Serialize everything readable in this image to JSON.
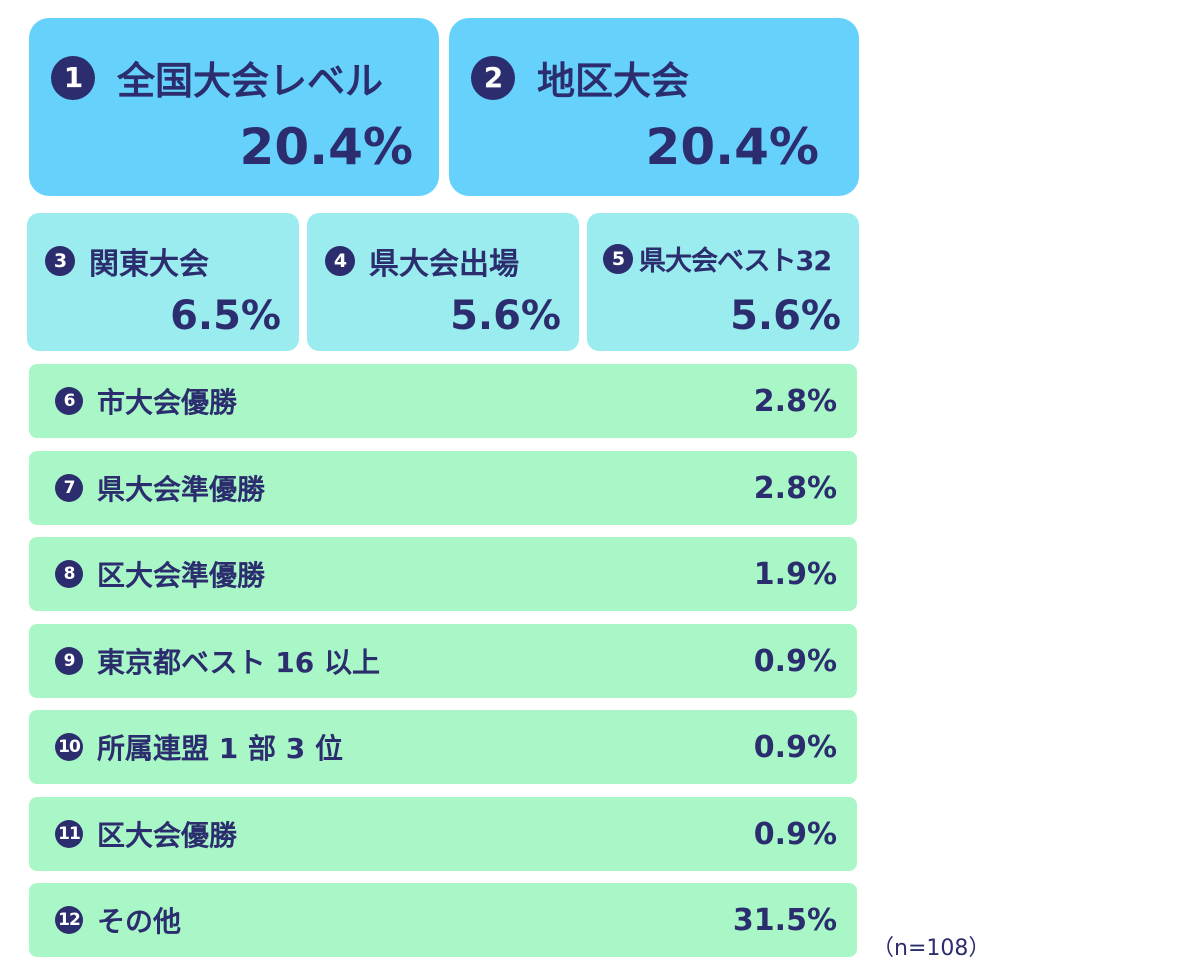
{
  "chart_data": {
    "type": "table",
    "note": "（n=108）",
    "items": [
      {
        "no": "1",
        "label": "全国大会レベル",
        "value": "20.4%"
      },
      {
        "no": "2",
        "label": "地区大会",
        "value": "20.4%"
      },
      {
        "no": "3",
        "label": "関東大会",
        "value": "6.5%"
      },
      {
        "no": "4",
        "label": "県大会出場",
        "value": "5.6%"
      },
      {
        "no": "5",
        "label": "県大会ベスト32",
        "value": "5.6%"
      },
      {
        "no": "6",
        "label": "市大会優勝",
        "value": "2.8%"
      },
      {
        "no": "7",
        "label": "県大会準優勝",
        "value": "2.8%"
      },
      {
        "no": "8",
        "label": "区大会準優勝",
        "value": "1.9%"
      },
      {
        "no": "9",
        "label": "東京都ベスト 16 以上",
        "value": "0.9%"
      },
      {
        "no": "10",
        "label": "所属連盟 1 部 3 位",
        "value": "0.9%"
      },
      {
        "no": "11",
        "label": "区大会優勝",
        "value": "0.9%"
      },
      {
        "no": "12",
        "label": "その他",
        "value": "31.5%"
      }
    ],
    "colors": {
      "tier1": "#66d2fb",
      "tier2": "#9aecee",
      "tier3": "#a9f7c6",
      "text": "#2b2d6e"
    }
  }
}
